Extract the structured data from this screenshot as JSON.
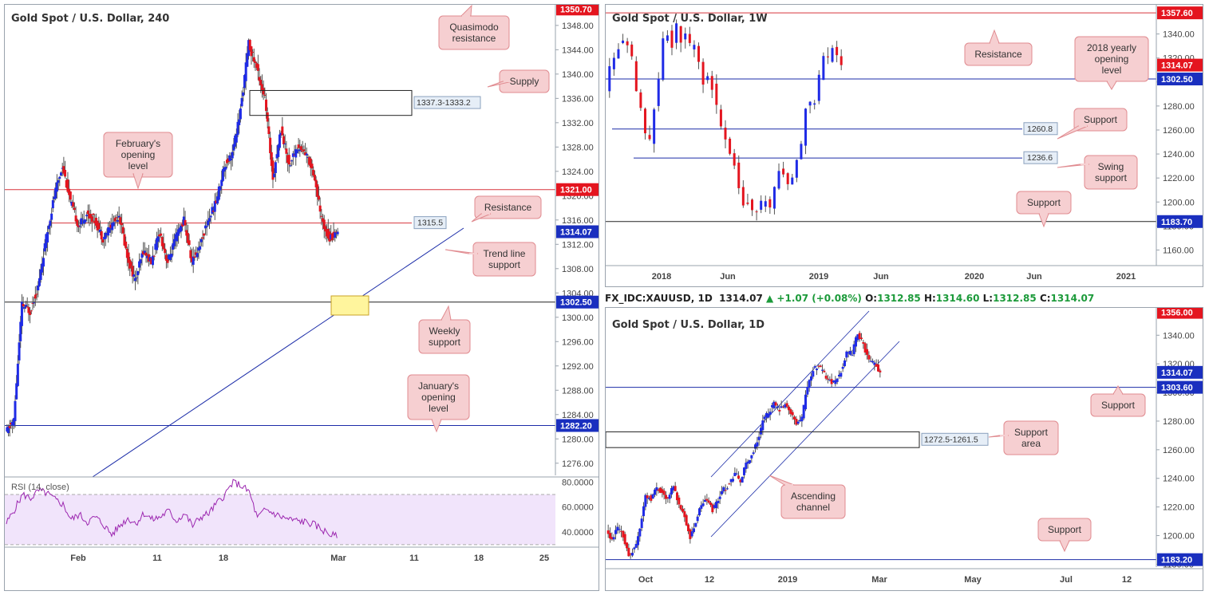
{
  "colors": {
    "bull": "#1f2be6",
    "bear": "#e4151f",
    "wick": "#555555",
    "red_line": "#d8343c",
    "blue_line": "#1b2ca8",
    "black_line": "#222222",
    "callout_bg": "#f6cfd1",
    "callout_border": "#e08b90",
    "tag_red": "#e4151f",
    "tag_blue": "#1a2fbf",
    "rsi_fill": "#f1e4fb",
    "rsi_line": "#9c27b0",
    "yellow": "#fff59d"
  },
  "info_bar": {
    "symbol": "FX_IDC:XAUUSD, 1D",
    "price": "1314.07",
    "arrow": "▲",
    "change": "+1.07 (+0.08%)",
    "o_label": "O:",
    "o_val": "1312.85",
    "h_label": "H:",
    "h_val": "1314.60",
    "l_label": "L:",
    "l_val": "1312.85",
    "c_label": "C:",
    "c_val": "1314.07"
  },
  "chart_data": [
    {
      "type": "candlestick",
      "title": "Gold Spot / U.S. Dollar, 240",
      "ylim": [
        1274,
        1351
      ],
      "y_ticks": [
        "1348.00",
        "1344.00",
        "1340.00",
        "1336.00",
        "1332.00",
        "1328.00",
        "1324.00",
        "1320.00",
        "1316.00",
        "1312.00",
        "1308.00",
        "1304.00",
        "1300.00",
        "1296.00",
        "1292.00",
        "1288.00",
        "1284.00",
        "1280.00",
        "1276.00"
      ],
      "y_tick_values": [
        1348,
        1344,
        1340,
        1336,
        1332,
        1328,
        1324,
        1320,
        1316,
        1312,
        1308,
        1304,
        1300,
        1296,
        1292,
        1288,
        1284,
        1280,
        1276
      ],
      "x_ticks": [
        "Feb",
        "11",
        "18",
        "Mar",
        "11",
        "18",
        "25"
      ],
      "path": [
        1281,
        1283,
        1302,
        1301,
        1305,
        1313,
        1320,
        1325,
        1319,
        1315,
        1317,
        1316,
        1313,
        1315,
        1317,
        1310,
        1306,
        1311,
        1309,
        1314,
        1309,
        1313,
        1316,
        1309,
        1312,
        1316,
        1319,
        1325,
        1327,
        1334,
        1345,
        1341,
        1336,
        1323,
        1331,
        1325,
        1328,
        1327,
        1324,
        1316,
        1313,
        1314.07
      ],
      "tags": [
        {
          "value": 1350.7,
          "text": "1350.70",
          "style": "red"
        },
        {
          "value": 1321.0,
          "text": "1321.00",
          "style": "red"
        },
        {
          "value": 1314.07,
          "text": "1314.07",
          "style": "blue"
        },
        {
          "value": 1302.5,
          "text": "1302.50",
          "style": "blue"
        },
        {
          "value": 1282.2,
          "text": "1282.20",
          "style": "blue"
        }
      ],
      "hlines": [
        {
          "value": 1321.0,
          "color": "red"
        },
        {
          "value": 1315.5,
          "color": "red"
        },
        {
          "value": 1302.5,
          "color": "black"
        },
        {
          "value": 1282.2,
          "color": "blue"
        }
      ],
      "zone_label": "1337.3-1333.2",
      "zone": [
        1337.3,
        1333.2
      ],
      "level_label": "1315.5",
      "callouts": [
        "Quasimodo resistance",
        "Supply",
        "February's opening level",
        "Resistance",
        "Trend line support",
        "Weekly support",
        "January's opening level"
      ],
      "rsi": {
        "label": "RSI (14, close)",
        "ylim": [
          28,
          84
        ],
        "ticks": [
          "80.0000",
          "60.0000",
          "40.0000"
        ],
        "tick_values": [
          80,
          60,
          40
        ],
        "band": [
          30,
          70
        ],
        "values": [
          47,
          58,
          70,
          67,
          73,
          71,
          66,
          62,
          50,
          54,
          48,
          52,
          46,
          38,
          45,
          51,
          47,
          55,
          50,
          52,
          57,
          49,
          55,
          45,
          52,
          55,
          63,
          70,
          80,
          77,
          72,
          51,
          58,
          55,
          52,
          50,
          49,
          48,
          46,
          42,
          38,
          36
        ]
      }
    },
    {
      "type": "candlestick",
      "title": "Gold Spot / U.S. Dollar, 1W",
      "ylim": [
        1147,
        1363
      ],
      "y_ticks": [
        "1340.00",
        "1320.00",
        "1300.00",
        "1280.00",
        "1260.00",
        "1240.00",
        "1220.00",
        "1200.00",
        "1180.00",
        "1160.00"
      ],
      "y_tick_values": [
        1340,
        1320,
        1300,
        1280,
        1260,
        1240,
        1220,
        1200,
        1180,
        1160
      ],
      "x_ticks": [
        "2018",
        "Jun",
        "2019",
        "Jun",
        "2020",
        "Jun",
        "2021"
      ],
      "path": [
        1295,
        1310,
        1320,
        1330,
        1332,
        1328,
        1318,
        1290,
        1276,
        1256,
        1252,
        1280,
        1300,
        1335,
        1340,
        1330,
        1346,
        1335,
        1340,
        1330,
        1332,
        1318,
        1300,
        1305,
        1295,
        1280,
        1265,
        1255,
        1238,
        1232,
        1212,
        1198,
        1200,
        1190,
        1195,
        1198,
        1202,
        1196,
        1210,
        1228,
        1225,
        1213,
        1222,
        1238,
        1250,
        1280,
        1282,
        1285,
        1305,
        1320,
        1318,
        1330,
        1320,
        1314.07
      ],
      "tags": [
        {
          "value": 1357.6,
          "text": "1357.60",
          "style": "red"
        },
        {
          "value": 1314.07,
          "text": "1314.07",
          "style": "red"
        },
        {
          "value": 1302.5,
          "text": "1302.50",
          "style": "blue"
        },
        {
          "value": 1183.7,
          "text": "1183.70",
          "style": "blue"
        }
      ],
      "hlines": [
        {
          "value": 1357.6,
          "color": "red"
        },
        {
          "value": 1302.5,
          "color": "blue"
        },
        {
          "value": 1260.8,
          "color": "blue"
        },
        {
          "value": 1236.6,
          "color": "blue"
        },
        {
          "value": 1183.7,
          "color": "black"
        }
      ],
      "level_labels": [
        "1260.8",
        "1236.6"
      ],
      "callouts": [
        "Resistance",
        "2018 yearly opening level",
        "Support",
        "Swing support",
        "Support"
      ]
    },
    {
      "type": "candlestick",
      "title": "Gold Spot / U.S. Dollar, 1D",
      "ylim": [
        1178,
        1358
      ],
      "y_ticks": [
        "1340.00",
        "1320.00",
        "1300.00",
        "1280.00",
        "1260.00",
        "1240.00",
        "1220.00",
        "1200.00",
        "1180.00"
      ],
      "y_tick_values": [
        1340,
        1320,
        1300,
        1280,
        1260,
        1240,
        1220,
        1200,
        1180
      ],
      "x_ticks": [
        "Oct",
        "12",
        "2019",
        "Mar",
        "May",
        "Jul",
        "12"
      ],
      "path": [
        1203,
        1196,
        1206,
        1200,
        1186,
        1190,
        1205,
        1228,
        1226,
        1234,
        1230,
        1225,
        1236,
        1220,
        1214,
        1198,
        1210,
        1222,
        1225,
        1218,
        1226,
        1232,
        1236,
        1244,
        1238,
        1250,
        1256,
        1266,
        1280,
        1286,
        1292,
        1288,
        1291,
        1286,
        1278,
        1282,
        1305,
        1316,
        1318,
        1313,
        1308,
        1307,
        1315,
        1327,
        1328,
        1342,
        1333,
        1322,
        1320,
        1314.07
      ],
      "tags": [
        {
          "value": 1356.0,
          "text": "1356.00",
          "style": "red"
        },
        {
          "value": 1314.07,
          "text": "1314.07",
          "style": "blue"
        },
        {
          "value": 1303.6,
          "text": "1303.60",
          "style": "blue"
        },
        {
          "value": 1183.2,
          "text": "1183.20",
          "style": "blue"
        }
      ],
      "hlines": [
        {
          "value": 1303.6,
          "color": "blue"
        },
        {
          "value": 1183.2,
          "color": "blue"
        }
      ],
      "zone_label": "1272.5-1261.5",
      "zone": [
        1272.5,
        1261.5
      ],
      "callouts": [
        "Support",
        "Support area",
        "Ascending channel",
        "Support"
      ]
    }
  ]
}
